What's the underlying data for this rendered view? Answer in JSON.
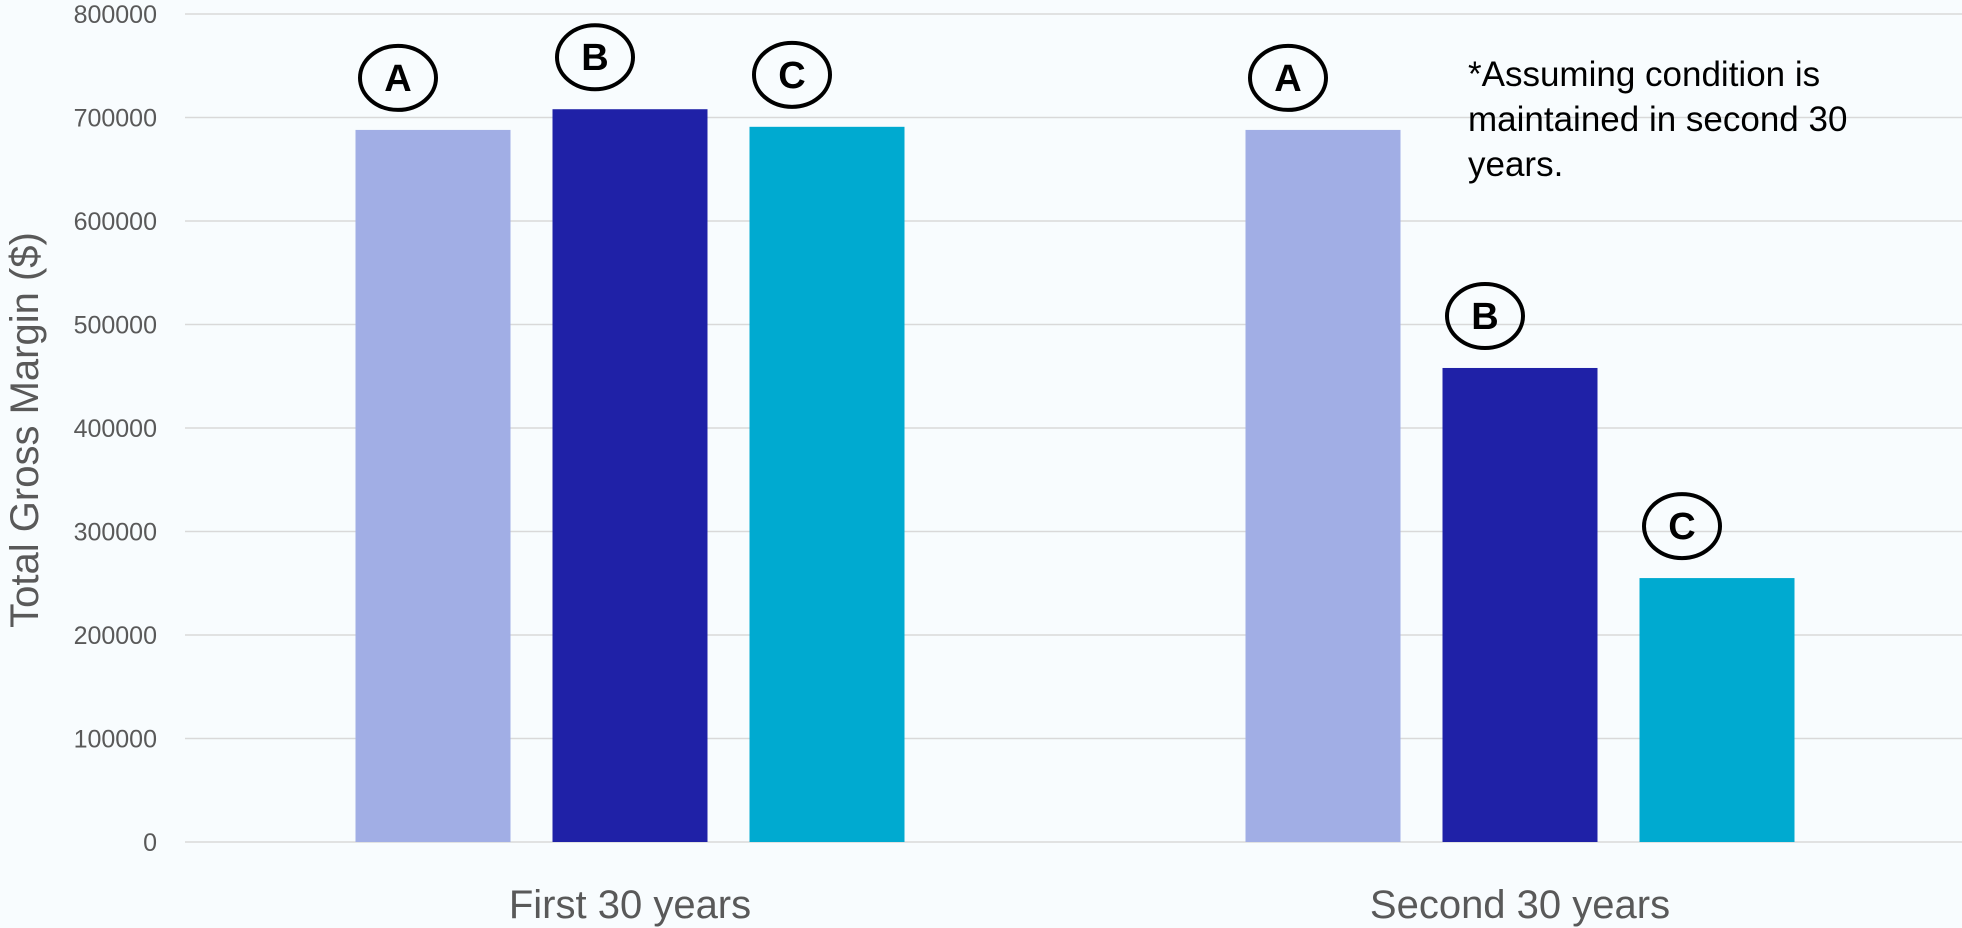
{
  "chart_data": {
    "type": "bar",
    "categories": [
      "First 30 years",
      "Second 30 years"
    ],
    "series": [
      {
        "name": "A",
        "color": "#a1aee5",
        "values": [
          688000,
          688000
        ]
      },
      {
        "name": "B",
        "color": "#1f21a7",
        "values": [
          708000,
          458000
        ]
      },
      {
        "name": "C",
        "color": "#00aad0",
        "values": [
          691000,
          255000
        ]
      }
    ],
    "title": "",
    "xlabel": "",
    "ylabel": "Total Gross Margin ($)",
    "ylim": [
      0,
      800000
    ],
    "yticks": [
      0,
      100000,
      200000,
      300000,
      400000,
      500000,
      600000,
      700000,
      800000
    ],
    "ytick_labels": [
      "0",
      "100000",
      "200000",
      "300000",
      "400000",
      "500000",
      "600000",
      "700000",
      "800000"
    ],
    "grid": true,
    "legend": "none",
    "bar_markers": "circled series letter above each bar",
    "annotation": "*Assuming condition is maintained in second 30 years.",
    "gridline_color": "#d9d9d9",
    "text_color": "#595959"
  }
}
